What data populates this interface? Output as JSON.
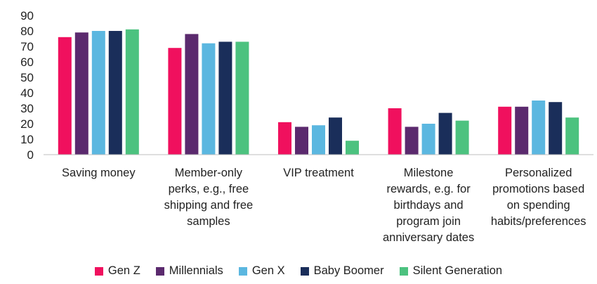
{
  "chart_data": {
    "type": "bar",
    "title": "",
    "xlabel": "",
    "ylabel": "",
    "ylim": [
      0,
      90
    ],
    "yticks": [
      0,
      10,
      20,
      30,
      40,
      50,
      60,
      70,
      80,
      90
    ],
    "grid": false,
    "legend_position": "bottom",
    "categories": [
      [
        "Saving money"
      ],
      [
        "Member-only",
        "perks, e.g., free",
        "shipping and free",
        "samples"
      ],
      [
        "VIP treatment"
      ],
      [
        "Milestone",
        "rewards, e.g. for",
        "birthdays and",
        "program join",
        "anniversary dates"
      ],
      [
        "Personalized",
        "promotions based",
        "on spending",
        "habits/preferences"
      ]
    ],
    "series": [
      {
        "name": "Gen Z",
        "color": "#F0105E",
        "values": [
          76,
          69,
          21,
          30,
          31
        ]
      },
      {
        "name": "Millennials",
        "color": "#5B2A6E",
        "values": [
          79,
          78,
          18,
          18,
          31
        ]
      },
      {
        "name": "Gen X",
        "color": "#5BB7E0",
        "values": [
          80,
          72,
          19,
          20,
          35
        ]
      },
      {
        "name": "Baby Boomer",
        "color": "#1A2E5A",
        "values": [
          80,
          73,
          24,
          27,
          34
        ]
      },
      {
        "name": "Silent Generation",
        "color": "#4CC27F",
        "values": [
          81,
          73,
          9,
          22,
          24
        ]
      }
    ]
  }
}
